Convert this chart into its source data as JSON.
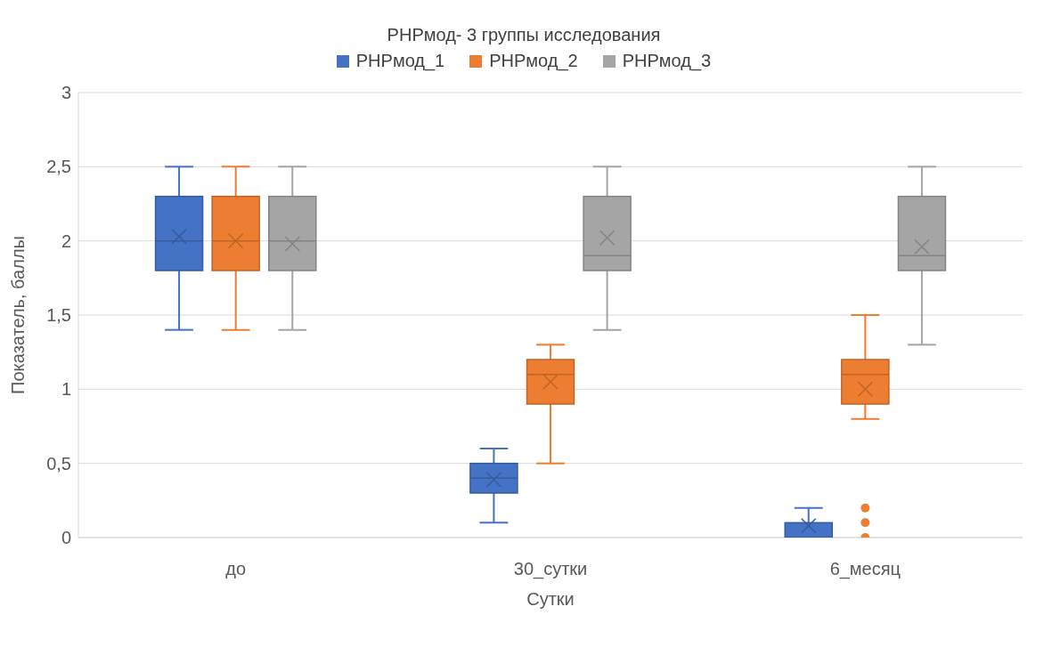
{
  "chart_data": {
    "type": "box",
    "title": "РНРмод- 3 группы исследования",
    "xlabel": "Сутки",
    "ylabel": "Показатель, баллы",
    "categories": [
      "до",
      "30_сутки",
      "6_месяц"
    ],
    "ylim": [
      0,
      3
    ],
    "yticks": [
      0,
      {
        "value": 0.5,
        "label": "0,5"
      },
      1,
      {
        "value": 1.5,
        "label": "1,5"
      },
      2,
      {
        "value": 2.5,
        "label": "2,5"
      },
      3
    ],
    "grid": "y",
    "legend": "top",
    "series": [
      {
        "name": "РНРмод_1",
        "color": "#4472c4",
        "boxes": [
          {
            "low": 1.4,
            "q1": 1.8,
            "median": 2.0,
            "q3": 2.3,
            "high": 2.5,
            "mean": 2.03
          },
          {
            "low": 0.1,
            "q1": 0.3,
            "median": 0.4,
            "q3": 0.5,
            "high": 0.6,
            "mean": 0.39
          },
          {
            "low": 0,
            "q1": 0,
            "median": 0,
            "q3": 0.1,
            "high": 0.2,
            "mean": 0.08
          }
        ]
      },
      {
        "name": "РНРмод_2",
        "color": "#ed7d31",
        "boxes": [
          {
            "low": 1.4,
            "q1": 1.8,
            "median": 2.0,
            "q3": 2.3,
            "high": 2.5,
            "mean": 2.0
          },
          {
            "low": 0.5,
            "q1": 0.9,
            "median": 1.1,
            "q3": 1.2,
            "high": 1.3,
            "mean": 1.05
          },
          {
            "low": 0.8,
            "q1": 0.9,
            "median": 1.1,
            "q3": 1.2,
            "high": 1.5,
            "mean": 1.0,
            "outliers": [
              0.2,
              0.1,
              0
            ]
          }
        ]
      },
      {
        "name": "РНРмод_3",
        "color": "#a5a5a5",
        "boxes": [
          {
            "low": 1.4,
            "q1": 1.8,
            "median": 2.0,
            "q3": 2.3,
            "high": 2.5,
            "mean": 1.98
          },
          {
            "low": 1.4,
            "q1": 1.8,
            "median": 1.9,
            "q3": 2.3,
            "high": 2.5,
            "mean": 2.02
          },
          {
            "low": 1.3,
            "q1": 1.8,
            "median": 1.9,
            "q3": 2.3,
            "high": 2.5,
            "mean": 1.96
          }
        ]
      }
    ]
  }
}
